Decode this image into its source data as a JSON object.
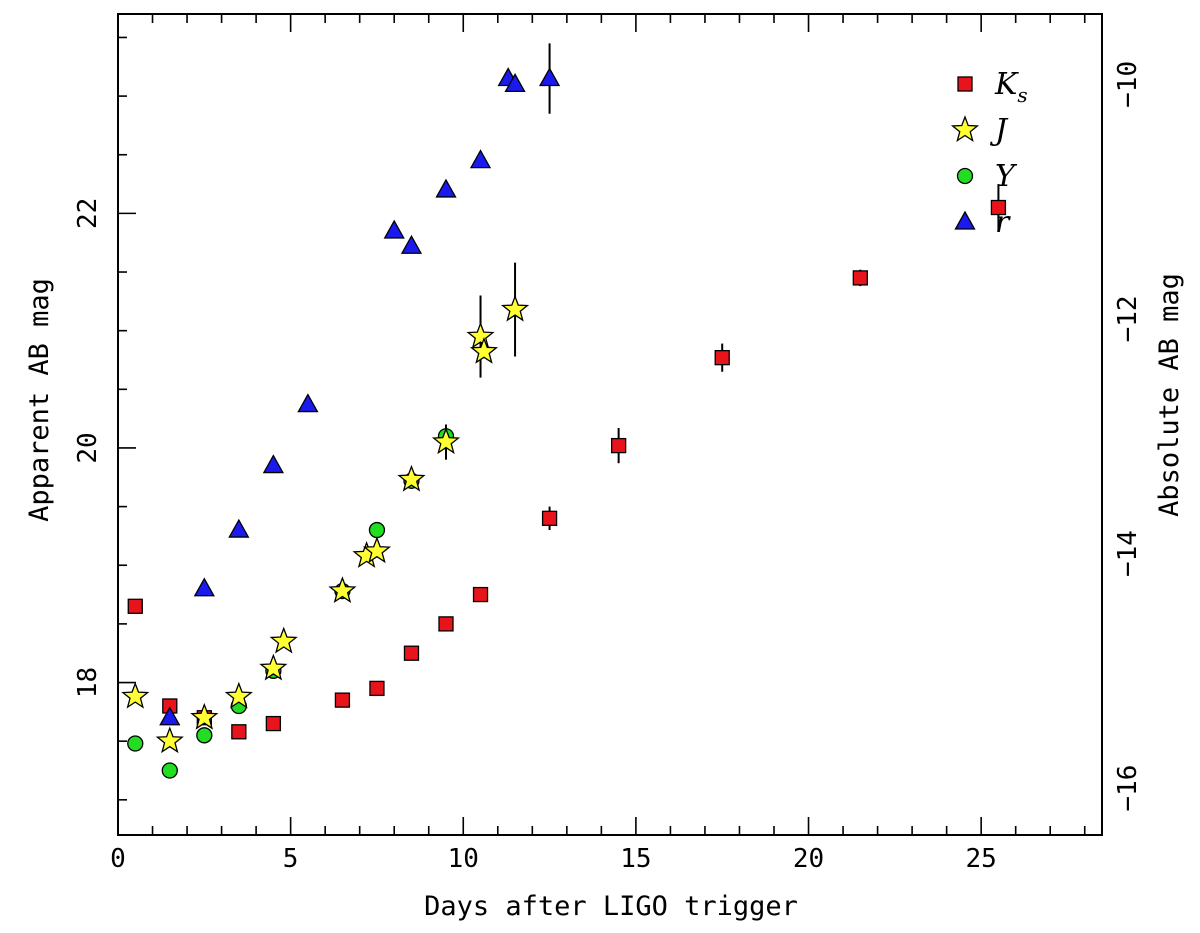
{
  "chart_data": {
    "type": "scatter",
    "title": "",
    "xlabel": "Days after LIGO trigger",
    "ylabel": "Apparent AB mag",
    "ylabel_right": "Absolute AB mag",
    "xlim": [
      0,
      28.5
    ],
    "ylim": [
      23.7,
      16.7
    ],
    "x_ticks": [
      0,
      5,
      10,
      15,
      20,
      25
    ],
    "y_ticks": [
      18,
      20,
      22
    ],
    "y_right_ticks": [
      -16,
      -14,
      -12,
      -10
    ],
    "y_right_offset": -33.1,
    "grid": false,
    "legend": "top-right",
    "series": [
      {
        "name": "K",
        "name_subscript": "s",
        "marker": "square",
        "color": "#e8141c",
        "points": [
          {
            "x": 0.5,
            "y": 18.65
          },
          {
            "x": 1.5,
            "y": 17.8
          },
          {
            "x": 2.5,
            "y": 17.7
          },
          {
            "x": 3.5,
            "y": 17.58
          },
          {
            "x": 4.5,
            "y": 17.65
          },
          {
            "x": 6.5,
            "y": 17.85
          },
          {
            "x": 7.5,
            "y": 17.95
          },
          {
            "x": 8.5,
            "y": 18.25
          },
          {
            "x": 9.5,
            "y": 18.5
          },
          {
            "x": 10.5,
            "y": 18.75
          },
          {
            "x": 12.5,
            "y": 19.4,
            "err": 0.1
          },
          {
            "x": 14.5,
            "y": 20.02,
            "err": 0.15
          },
          {
            "x": 17.5,
            "y": 20.77,
            "err": 0.12
          },
          {
            "x": 21.5,
            "y": 21.45,
            "err": 0.07
          },
          {
            "x": 25.5,
            "y": 22.05,
            "err": 0.2
          }
        ]
      },
      {
        "name": "J",
        "marker": "star",
        "color": "#ffff33",
        "points": [
          {
            "x": 0.5,
            "y": 17.88
          },
          {
            "x": 1.5,
            "y": 17.5
          },
          {
            "x": 2.5,
            "y": 17.7
          },
          {
            "x": 3.5,
            "y": 17.88
          },
          {
            "x": 4.5,
            "y": 18.12
          },
          {
            "x": 4.8,
            "y": 18.35
          },
          {
            "x": 6.5,
            "y": 18.78
          },
          {
            "x": 7.2,
            "y": 19.08
          },
          {
            "x": 7.5,
            "y": 19.12
          },
          {
            "x": 8.5,
            "y": 19.73
          },
          {
            "x": 9.5,
            "y": 20.05,
            "err": 0.15
          },
          {
            "x": 10.5,
            "y": 20.95,
            "err": 0.35
          },
          {
            "x": 10.6,
            "y": 20.82
          },
          {
            "x": 11.5,
            "y": 21.18,
            "err": 0.4
          }
        ]
      },
      {
        "name": "Y",
        "marker": "circle",
        "color": "#22dd22",
        "points": [
          {
            "x": 0.5,
            "y": 17.48
          },
          {
            "x": 1.5,
            "y": 17.25
          },
          {
            "x": 2.5,
            "y": 17.55
          },
          {
            "x": 3.5,
            "y": 17.8
          },
          {
            "x": 4.5,
            "y": 18.1
          },
          {
            "x": 6.5,
            "y": 18.78
          },
          {
            "x": 7.5,
            "y": 19.3
          },
          {
            "x": 8.5,
            "y": 19.72
          },
          {
            "x": 9.5,
            "y": 20.1
          }
        ]
      },
      {
        "name": "r",
        "marker": "triangle",
        "color": "#1a1aee",
        "points": [
          {
            "x": 1.5,
            "y": 17.7
          },
          {
            "x": 2.5,
            "y": 18.8
          },
          {
            "x": 3.5,
            "y": 19.3
          },
          {
            "x": 4.5,
            "y": 19.85
          },
          {
            "x": 5.5,
            "y": 20.37
          },
          {
            "x": 8.0,
            "y": 21.85
          },
          {
            "x": 8.5,
            "y": 21.72
          },
          {
            "x": 9.5,
            "y": 22.2
          },
          {
            "x": 10.5,
            "y": 22.45
          },
          {
            "x": 11.3,
            "y": 23.15
          },
          {
            "x": 11.5,
            "y": 23.1
          },
          {
            "x": 12.5,
            "y": 23.15,
            "err": 0.3
          }
        ]
      }
    ]
  }
}
